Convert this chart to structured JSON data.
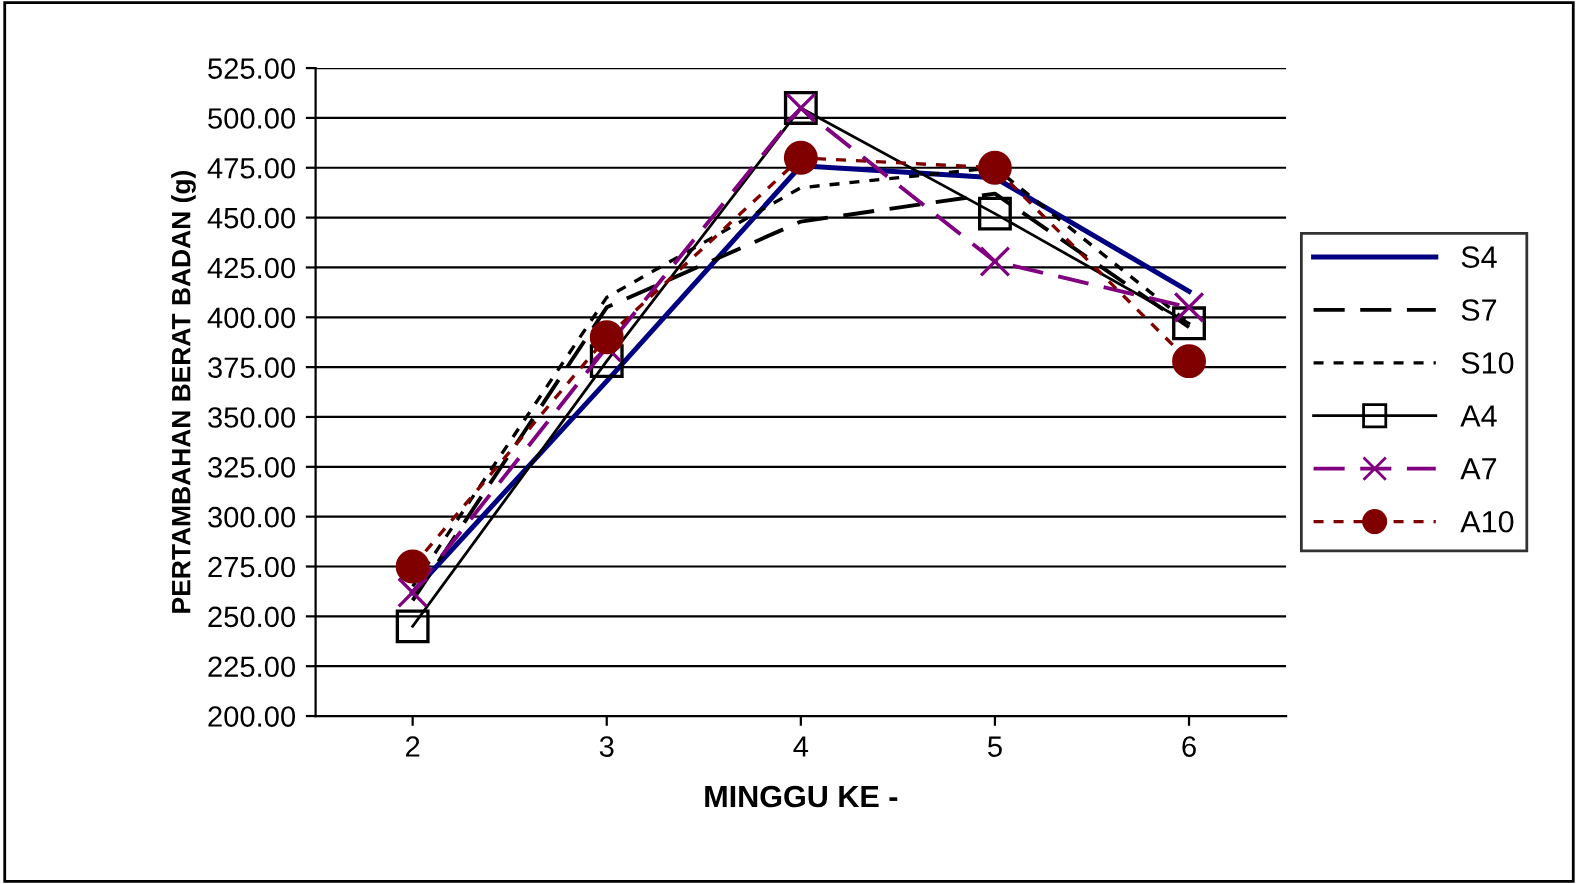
{
  "chart_data": {
    "type": "line",
    "xlabel": "MINGGU KE -",
    "ylabel": "PERTAMBAHAN BERAT BADAN (g)",
    "categories": [
      "2",
      "3",
      "4",
      "5",
      "6"
    ],
    "ylim": [
      200,
      525
    ],
    "yticks": [
      {
        "value": 200,
        "label": "200.00"
      },
      {
        "value": 225,
        "label": "225.00"
      },
      {
        "value": 250,
        "label": "250.00"
      },
      {
        "value": 275,
        "label": "275.00"
      },
      {
        "value": 300,
        "label": "300.00"
      },
      {
        "value": 325,
        "label": "325.00"
      },
      {
        "value": 350,
        "label": "350.00"
      },
      {
        "value": 375,
        "label": "375.00"
      },
      {
        "value": 400,
        "label": "400.00"
      },
      {
        "value": 425,
        "label": "425.00"
      },
      {
        "value": 450,
        "label": "450.00"
      },
      {
        "value": 475,
        "label": "475.00"
      },
      {
        "value": 500,
        "label": "500.00"
      },
      {
        "value": 525,
        "label": "525.00"
      }
    ],
    "grid": "y",
    "legend": "right",
    "series": [
      {
        "name": "S4",
        "color": "#000080",
        "line_style": "solid",
        "marker": "none",
        "values": [
          262,
          368,
          476,
          470,
          413
        ]
      },
      {
        "name": "S7",
        "color": "#000000",
        "line_style": "dashed",
        "marker": "none",
        "values": [
          258,
          405,
          448,
          462,
          395
        ]
      },
      {
        "name": "S10",
        "color": "#000000",
        "line_style": "dotted",
        "marker": "none",
        "values": [
          265,
          410,
          465,
          475,
          397
        ]
      },
      {
        "name": "A4",
        "color": "#000000",
        "line_style": "solid",
        "marker": "square",
        "values": [
          245,
          378,
          505,
          452,
          397
        ]
      },
      {
        "name": "A7",
        "color": "#800080",
        "line_style": "dashed",
        "marker": "cross",
        "values": [
          262,
          385,
          505,
          428,
          405
        ]
      },
      {
        "name": "A10",
        "color": "#800000",
        "line_style": "dotted",
        "marker": "circle",
        "values": [
          275,
          390,
          480,
          475,
          378
        ]
      }
    ]
  }
}
